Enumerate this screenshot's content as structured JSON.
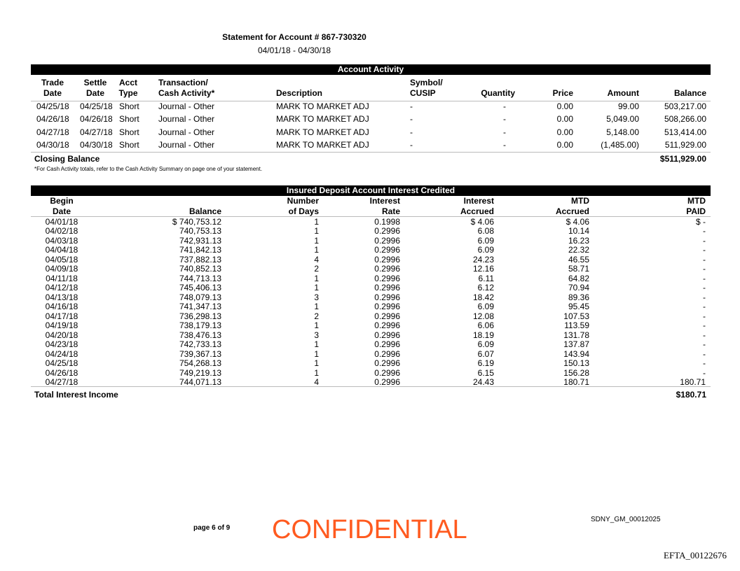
{
  "header": {
    "title": "Statement for Account # 867-730320",
    "period": "04/01/18 - 04/30/18"
  },
  "activity": {
    "title": "Account Activity",
    "headers": {
      "trade_date": [
        "Trade",
        "Date"
      ],
      "settle_date": [
        "Settle",
        "Date"
      ],
      "acct_type": [
        "Acct",
        "Type"
      ],
      "transaction": [
        "Transaction/",
        "Cash Activity*"
      ],
      "description": "Description",
      "symbol": [
        "Symbol/",
        "CUSIP"
      ],
      "quantity": "Quantity",
      "price": "Price",
      "amount": "Amount",
      "balance": "Balance"
    },
    "rows": [
      {
        "trade_date": "04/25/18",
        "settle_date": "04/25/18",
        "acct_type": "Short",
        "transaction": "Journal - Other",
        "description": "MARK TO MARKET ADJ",
        "symbol": "-",
        "quantity": "-",
        "price": "0.00",
        "amount": "99.00",
        "balance": "503,217.00"
      },
      {
        "trade_date": "04/26/18",
        "settle_date": "04/26/18",
        "acct_type": "Short",
        "transaction": "Journal - Other",
        "description": "MARK TO MARKET ADJ",
        "symbol": "-",
        "quantity": "-",
        "price": "0.00",
        "amount": "5,049.00",
        "balance": "508,266.00"
      },
      {
        "trade_date": "04/27/18",
        "settle_date": "04/27/18",
        "acct_type": "Short",
        "transaction": "Journal - Other",
        "description": "MARK TO MARKET ADJ",
        "symbol": "-",
        "quantity": "-",
        "price": "0.00",
        "amount": "5,148.00",
        "balance": "513,414.00"
      },
      {
        "trade_date": "04/30/18",
        "settle_date": "04/30/18",
        "acct_type": "Short",
        "transaction": "Journal - Other",
        "description": "MARK TO MARKET ADJ",
        "symbol": "-",
        "quantity": "-",
        "price": "0.00",
        "amount": "(1,485.00)",
        "balance": "511,929.00"
      }
    ],
    "closing_label": "Closing Balance",
    "closing_value": "$511,929.00",
    "footnote": "*For Cash Activity totals, refer to the Cash Activity Summary on page one of your statement."
  },
  "interest": {
    "title": "Insured Deposit Account Interest Credited",
    "headers": {
      "begin_date": [
        "Begin",
        "Date"
      ],
      "balance": [
        "",
        "Balance"
      ],
      "days": [
        "Number",
        "of Days"
      ],
      "rate": [
        "Interest",
        "Rate"
      ],
      "accrued": [
        "Interest",
        "Accrued"
      ],
      "mtd_accrued": [
        "MTD",
        "Accrued"
      ],
      "mtd_paid": [
        "MTD",
        "PAID"
      ]
    },
    "rows": [
      [
        "04/01/18",
        "$ 740,753.12",
        "1",
        "0.1998",
        "$ 4.06",
        "$ 4.06",
        "$ -"
      ],
      [
        "04/02/18",
        "740,753.13",
        "1",
        "0.2996",
        "6.08",
        "10.14",
        "-"
      ],
      [
        "04/03/18",
        "742,931.13",
        "1",
        "0.2996",
        "6.09",
        "16.23",
        "-"
      ],
      [
        "04/04/18",
        "741,842.13",
        "1",
        "0.2996",
        "6.09",
        "22.32",
        "-"
      ],
      [
        "04/05/18",
        "737,882.13",
        "4",
        "0.2996",
        "24.23",
        "46.55",
        "-"
      ],
      [
        "04/09/18",
        "740,852.13",
        "2",
        "0.2996",
        "12.16",
        "58.71",
        "-"
      ],
      [
        "04/11/18",
        "744,713.13",
        "1",
        "0.2996",
        "6.11",
        "64.82",
        "-"
      ],
      [
        "04/12/18",
        "745,406.13",
        "1",
        "0.2996",
        "6.12",
        "70.94",
        "-"
      ],
      [
        "04/13/18",
        "748,079.13",
        "3",
        "0.2996",
        "18.42",
        "89.36",
        "-"
      ],
      [
        "04/16/18",
        "741,347.13",
        "1",
        "0.2996",
        "6.09",
        "95.45",
        "-"
      ],
      [
        "04/17/18",
        "736,298.13",
        "2",
        "0.2996",
        "12.08",
        "107.53",
        "-"
      ],
      [
        "04/19/18",
        "738,179.13",
        "1",
        "0.2996",
        "6.06",
        "113.59",
        "-"
      ],
      [
        "04/20/18",
        "738,476.13",
        "3",
        "0.2996",
        "18.19",
        "131.78",
        "-"
      ],
      [
        "04/23/18",
        "742,733.13",
        "1",
        "0.2996",
        "6.09",
        "137.87",
        "-"
      ],
      [
        "04/24/18",
        "739,367.13",
        "1",
        "0.2996",
        "6.07",
        "143.94",
        "-"
      ],
      [
        "04/25/18",
        "754,268.13",
        "1",
        "0.2996",
        "6.19",
        "150.13",
        "-"
      ],
      [
        "04/26/18",
        "749,219.13",
        "1",
        "0.2996",
        "6.15",
        "156.28",
        "-"
      ],
      [
        "04/27/18",
        "744,071.13",
        "4",
        "0.2996",
        "24.43",
        "180.71",
        "180.71"
      ]
    ],
    "total_label": "Total Interest Income",
    "total_value": "$180.71"
  },
  "footer": {
    "page": "page 6 of 9",
    "confidential": "CONFIDENTIAL",
    "bates": "SDNY_GM_00012025",
    "efta": "EFTA_00122676",
    "confidential_color": "#ff5a1f"
  }
}
